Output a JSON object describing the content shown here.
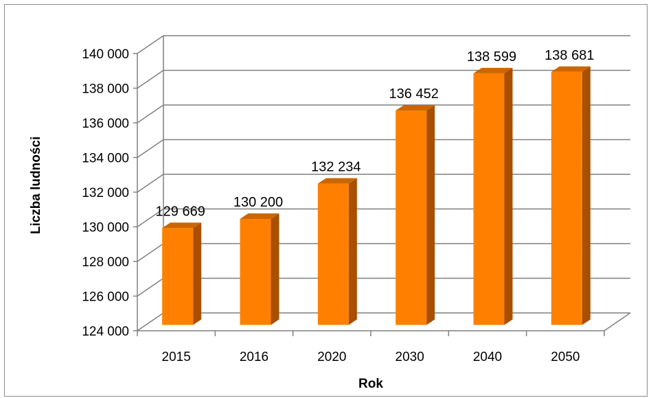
{
  "chart_data": {
    "type": "bar",
    "title": "",
    "xlabel": "Rok",
    "ylabel": "Liczba ludności",
    "categories": [
      "2015",
      "2016",
      "2020",
      "2030",
      "2040",
      "2050"
    ],
    "values": [
      129669,
      130200,
      132234,
      136452,
      138599,
      138681
    ],
    "value_labels": [
      "129 669",
      "130 200",
      "132 234",
      "136 452",
      "138 599",
      "138 681"
    ],
    "ylim": [
      124000,
      140000
    ],
    "yticks": [
      124000,
      126000,
      128000,
      130000,
      132000,
      134000,
      136000,
      138000,
      140000
    ],
    "ytick_labels": [
      "124 000",
      "126 000",
      "128 000",
      "130 000",
      "132 000",
      "134 000",
      "136 000",
      "138 000",
      "140 000"
    ],
    "grid": true,
    "legend": "none",
    "style": "3d-bar",
    "colors": {
      "bar_front": "#ff8000",
      "bar_side": "#a84f00",
      "bar_top": "#cc6600",
      "gridline": "#7f7f7f"
    }
  }
}
